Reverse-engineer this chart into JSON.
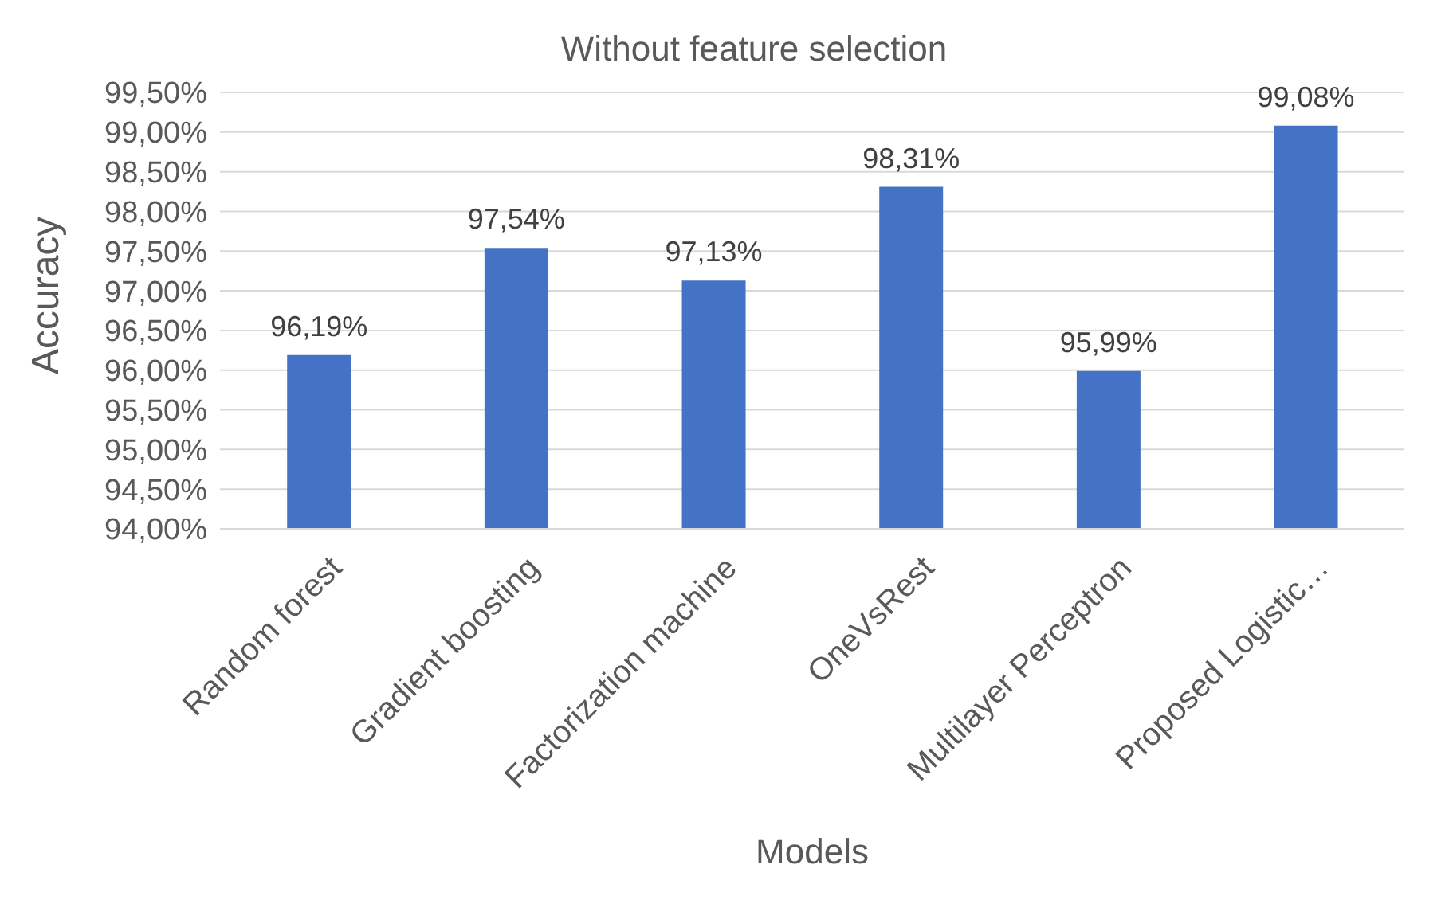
{
  "chart_data": {
    "type": "bar",
    "title": "Without feature selection",
    "xlabel": "Models",
    "ylabel": "Accuracy",
    "categories": [
      "Random forest",
      "Gradient boosting",
      "Factorization machine",
      "OneVsRest",
      "Multilayer Perceptron",
      "Proposed Logistic…"
    ],
    "values": [
      96.19,
      97.54,
      97.13,
      98.31,
      95.99,
      99.08
    ],
    "value_labels": [
      "96,19%",
      "97,54%",
      "97,13%",
      "98,31%",
      "95,99%",
      "99,08%"
    ],
    "color": "#4472c4",
    "ylim": [
      94,
      99.5
    ],
    "yticks": [
      {
        "value": 94,
        "label": "94,00%"
      },
      {
        "value": 94.5,
        "label": "94,50%"
      },
      {
        "value": 95,
        "label": "95,00%"
      },
      {
        "value": 95.5,
        "label": "95,50%"
      },
      {
        "value": 96,
        "label": "96,00%"
      },
      {
        "value": 96.5,
        "label": "96,50%"
      },
      {
        "value": 97,
        "label": "97,00%"
      },
      {
        "value": 97.5,
        "label": "97,50%"
      },
      {
        "value": 98,
        "label": "98,00%"
      },
      {
        "value": 98.5,
        "label": "98,50%"
      },
      {
        "value": 99,
        "label": "99,00%"
      },
      {
        "value": 99.5,
        "label": "99,50%"
      }
    ],
    "grid": "y"
  }
}
